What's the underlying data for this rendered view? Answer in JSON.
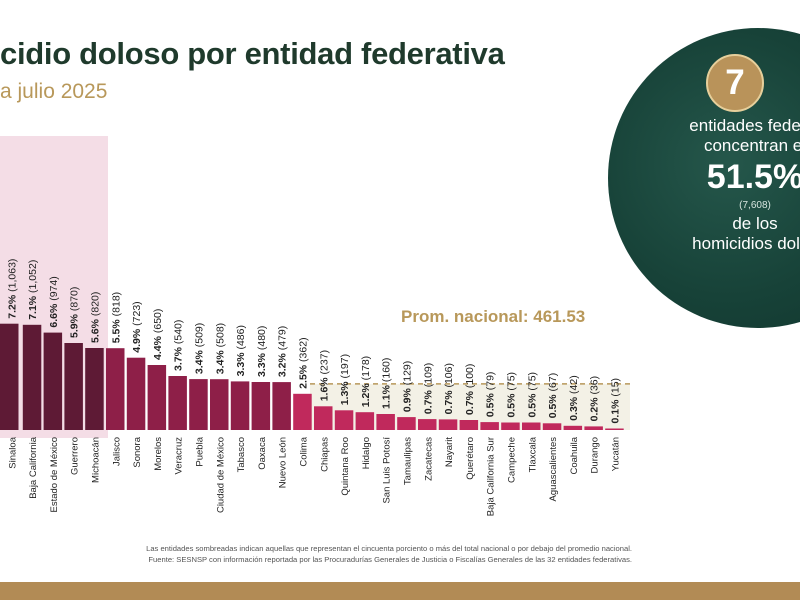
{
  "header": {
    "title": "cidio doloso por entidad federativa",
    "subtitle": "a julio 2025"
  },
  "average": {
    "label": "Prom. nacional: 461.53",
    "value": 461.53
  },
  "callout": {
    "count": "7",
    "line1": "entidades federat",
    "line2": "concentran el",
    "percent": "51.5%",
    "cases": "(7,608)",
    "line3": "de los",
    "line4": "homicidios dolos"
  },
  "notes": {
    "line1": "Las entidades sombreadas indican aquellas que representan el cincuenta porciento o más del total nacional o por debajo del promedio nacional.",
    "line2": "Fuente: SESNSP con información reportada por las Procuradurías Generales de Justicia o Fiscalías Generales de las 32 entidades federativas."
  },
  "colors": {
    "top_bar": "#5e1a35",
    "above_avg_bar": "#8e1f48",
    "below_avg_bar": "#c0295c",
    "average_line": "#b8985a",
    "highlight_top": "#f4dde6",
    "highlight_bottom": "#f3f1e6",
    "callout_bg": "#174238",
    "badge": "#b9935a"
  },
  "chart_data": {
    "type": "bar",
    "categories": [
      "Sinaloa",
      "Baja California",
      "Estado de México",
      "Guerrero",
      "Michoacán",
      "Jalisco",
      "Sonora",
      "Morelos",
      "Veracruz",
      "Puebla",
      "Ciudad de México",
      "Tabasco",
      "Oaxaca",
      "Nuevo León",
      "Colima",
      "Chiapas",
      "Quintana Roo",
      "Hidalgo",
      "San Luis Potosí",
      "Tamaulipas",
      "Zacatecas",
      "Nayarit",
      "Querétaro",
      "Baja California Sur",
      "Campeche",
      "Tlaxcala",
      "Aguascalientes",
      "Coahuila",
      "Durango",
      "Yucatán"
    ],
    "values": [
      1063,
      1052,
      974,
      870,
      820,
      818,
      723,
      650,
      540,
      509,
      508,
      486,
      480,
      479,
      362,
      237,
      197,
      178,
      160,
      129,
      109,
      106,
      100,
      79,
      75,
      75,
      67,
      42,
      36,
      15
    ],
    "labels": [
      [
        "7.2%",
        "(1,063)"
      ],
      [
        "7.1%",
        "(1,052)"
      ],
      [
        "6.6%",
        "(974)"
      ],
      [
        "5.9%",
        "(870)"
      ],
      [
        "5.6%",
        "(820)"
      ],
      [
        "5.5%",
        "(818)"
      ],
      [
        "4.9%",
        "(723)"
      ],
      [
        "4.4%",
        "(650)"
      ],
      [
        "3.7%",
        "(540)"
      ],
      [
        "3.4%",
        "(509)"
      ],
      [
        "3.4%",
        "(508)"
      ],
      [
        "3.3%",
        "(486)"
      ],
      [
        "3.3%",
        "(480)"
      ],
      [
        "3.2%",
        "(479)"
      ],
      [
        "2.5%",
        "(362)"
      ],
      [
        "1.6%",
        "(237)"
      ],
      [
        "1.3%",
        "(197)"
      ],
      [
        "1.2%",
        "(178)"
      ],
      [
        "1.1%",
        "(160)"
      ],
      [
        "0.9%",
        "(129)"
      ],
      [
        "0.7%",
        "(109)"
      ],
      [
        "0.7%",
        "(106)"
      ],
      [
        "0.7%",
        "(100)"
      ],
      [
        "0.5%",
        "(79)"
      ],
      [
        "0.5%",
        "(75)"
      ],
      [
        "0.5%",
        "(75)"
      ],
      [
        "0.5%",
        "(67)"
      ],
      [
        "0.3%",
        "(42)"
      ],
      [
        "0.2%",
        "(36)"
      ],
      [
        "0.1%",
        "(15)"
      ]
    ],
    "average": 461.53,
    "top_group_count": 5,
    "partial_first_bar": true,
    "ylim": [
      0,
      1063
    ]
  }
}
